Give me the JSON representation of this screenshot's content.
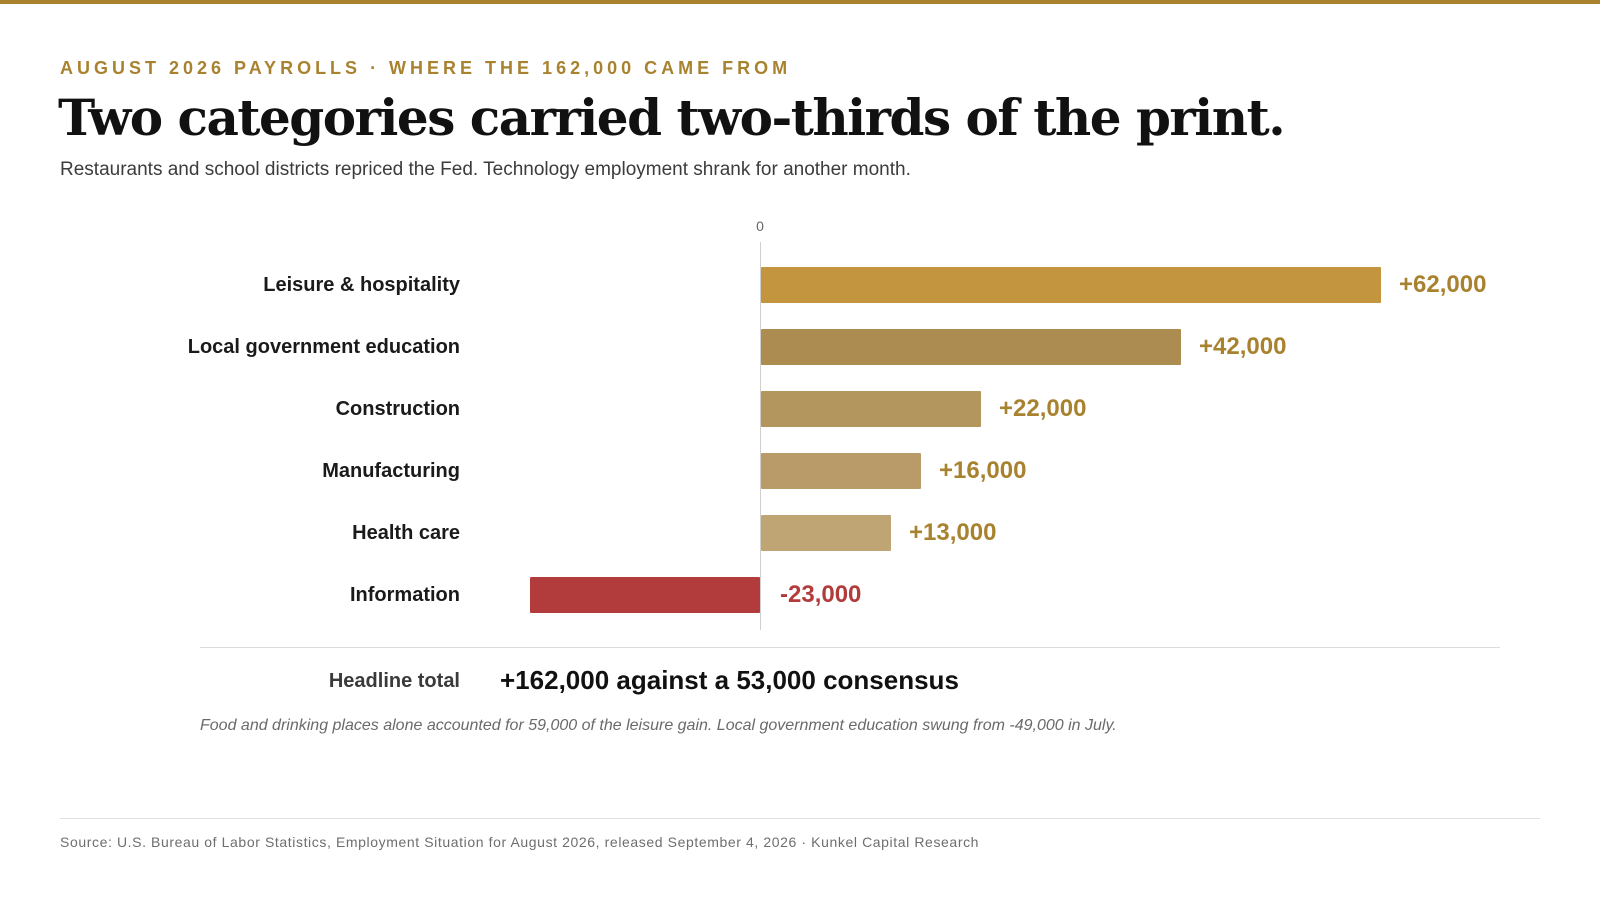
{
  "colors": {
    "accent": "#a8822f",
    "negative": "#b23b3b",
    "bar_shades": [
      "#c4953f",
      "#ad8c52",
      "#b3955e",
      "#b89b69",
      "#bea573"
    ]
  },
  "header": {
    "eyebrow": "AUGUST 2026 PAYROLLS · WHERE THE 162,000 CAME FROM",
    "title": "Two categories carried two-thirds of the print.",
    "subtitle": "Restaurants and school districts repriced the Fed. Technology employment shrank for another month."
  },
  "chart_data": {
    "type": "bar",
    "orientation": "horizontal",
    "title": "Two categories carried two-thirds of the print.",
    "zero_label": "0",
    "categories": [
      "Leisure & hospitality",
      "Local government education",
      "Construction",
      "Manufacturing",
      "Health care",
      "Information"
    ],
    "values": [
      62000,
      42000,
      22000,
      16000,
      13000,
      -23000
    ],
    "value_labels": [
      "+62,000",
      "+42,000",
      "+22,000",
      "+16,000",
      "+13,000",
      "-23,000"
    ],
    "xlim": [
      -30000,
      75000
    ],
    "grid": false,
    "legend": "none"
  },
  "summary": {
    "label": "Headline total",
    "value": "+162,000 against a 53,000 consensus",
    "note": "Food and drinking places alone accounted for 59,000 of the leisure gain. Local government education swung from -49,000 in July."
  },
  "footer": {
    "source": "Source: U.S. Bureau of Labor Statistics, Employment Situation for August 2026, released September 4, 2026 · Kunkel Capital Research"
  }
}
